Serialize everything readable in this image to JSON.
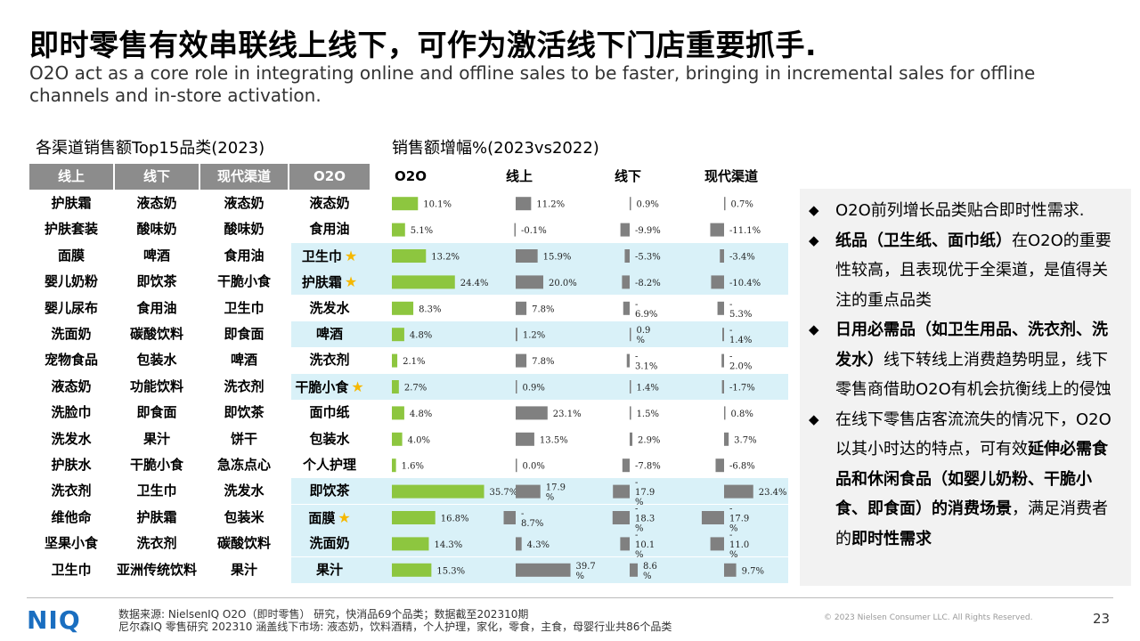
{
  "header": {
    "title": "即时零售有效串联线上线下，可作为激活线下门店重要抓手.",
    "subtitle": "O2O act as a core role in integrating online and offline sales to be faster, bringing in incremental sales for offline channels and in-store activation."
  },
  "ranking_table": {
    "section_title": "各渠道销售额Top15品类(2023)",
    "columns": [
      "线上",
      "线下",
      "现代渠道",
      "O2O"
    ],
    "rows": [
      [
        "护肤霜",
        "液态奶",
        "液态奶",
        "液态奶"
      ],
      [
        "护肤套装",
        "酸味奶",
        "酸味奶",
        "食用油"
      ],
      [
        "面膜",
        "啤酒",
        "食用油",
        "卫生巾"
      ],
      [
        "婴儿奶粉",
        "即饮茶",
        "干脆小食",
        "护肤霜"
      ],
      [
        "婴儿尿布",
        "食用油",
        "卫生巾",
        "洗发水"
      ],
      [
        "洗面奶",
        "碳酸饮料",
        "即食面",
        "啤酒"
      ],
      [
        "宠物食品",
        "包装水",
        "啤酒",
        "洗衣剂"
      ],
      [
        "液态奶",
        "功能饮料",
        "洗衣剂",
        "干脆小食"
      ],
      [
        "洗脸巾",
        "即食面",
        "即饮茶",
        "面巾纸"
      ],
      [
        "洗发水",
        "果汁",
        "饼干",
        "包装水"
      ],
      [
        "护肤水",
        "干脆小食",
        "急冻点心",
        "个人护理"
      ],
      [
        "洗衣剂",
        "卫生巾",
        "洗发水",
        "即饮茶"
      ],
      [
        "维他命",
        "护肤霜",
        "包装米",
        "面膜"
      ],
      [
        "坚果小食",
        "洗衣剂",
        "碳酸饮料",
        "洗面奶"
      ],
      [
        "卫生巾",
        "亚洲传统饮料",
        "果汁",
        "果汁"
      ]
    ],
    "starred_rows": [
      2,
      3,
      7,
      12
    ],
    "highlighted_rows": [
      2,
      3,
      5,
      7,
      11,
      12,
      13,
      14
    ],
    "header_color": "#8c8c8c",
    "highlight_color": "#d9f1f8",
    "star_color": "#f5b800"
  },
  "chart_data": {
    "type": "bar",
    "title": "销售额增幅%(2023vs2022)",
    "orientation": "horizontal",
    "categories": [
      "液态奶",
      "食用油",
      "卫生巾",
      "护肤霜",
      "洗发水",
      "啤酒",
      "洗衣剂",
      "干脆小食",
      "面巾纸",
      "包装水",
      "个人护理",
      "即饮茶",
      "面膜",
      "洗面奶",
      "果汁"
    ],
    "series": [
      {
        "name": "O2O",
        "color": "#8dc63f",
        "values": [
          10.1,
          5.1,
          13.2,
          24.4,
          8.3,
          4.8,
          2.1,
          2.7,
          4.8,
          4.0,
          1.6,
          35.7,
          16.8,
          14.3,
          15.3
        ]
      },
      {
        "name": "线上",
        "color": "#808080",
        "values": [
          11.2,
          -0.1,
          15.9,
          20.0,
          7.8,
          1.2,
          7.8,
          0.9,
          23.1,
          13.5,
          0.0,
          17.9,
          -8.7,
          4.3,
          39.7
        ]
      },
      {
        "name": "线下",
        "color": "#808080",
        "values": [
          0.9,
          -9.9,
          -5.3,
          -8.2,
          -6.9,
          0.9,
          -3.1,
          1.4,
          1.5,
          2.9,
          -7.8,
          -17.9,
          -18.3,
          -10.1,
          8.6
        ]
      },
      {
        "name": "现代渠道",
        "color": "#808080",
        "values": [
          0.7,
          -11.1,
          -3.4,
          -10.4,
          -5.3,
          -1.4,
          -2.0,
          -1.7,
          0.8,
          3.7,
          -6.8,
          23.4,
          -17.9,
          -11.0,
          9.7
        ]
      }
    ],
    "labels": [
      [
        "10.1%",
        "11.2%",
        "0.9%",
        "0.7%"
      ],
      [
        "5.1%",
        "-0.1%",
        "-9.9%",
        "-11.1%"
      ],
      [
        "13.2%",
        "15.9%",
        "-5.3%",
        "-3.4%"
      ],
      [
        "24.4%",
        "20.0%",
        "-8.2%",
        "-10.4%"
      ],
      [
        "8.3%",
        "7.8%",
        "-|6.9%",
        "-|5.3%"
      ],
      [
        "4.8%",
        "1.2%",
        "0.9|%",
        "-|1.4%"
      ],
      [
        "2.1%",
        "7.8%",
        "-|3.1%",
        "-|2.0%"
      ],
      [
        "2.7%",
        "0.9%",
        "1.4%",
        "-1.7%"
      ],
      [
        "4.8%",
        "23.1%",
        "1.5%",
        "0.8%"
      ],
      [
        "4.0%",
        "13.5%",
        "2.9%",
        "3.7%"
      ],
      [
        "1.6%",
        "0.0%",
        "-7.8%",
        "-6.8%"
      ],
      [
        "35.7%",
        "17.9|%",
        "-|17.9|%",
        "23.4%"
      ],
      [
        "16.8%",
        "-|8.7%",
        "-|18.3|%",
        "-|17.9|%"
      ],
      [
        "14.3%",
        "4.3%",
        "-|10.1|%",
        "-|11.0|%"
      ],
      [
        "15.3%",
        "39.7|%",
        "8.6|%",
        "9.7%"
      ]
    ]
  },
  "insights": {
    "bullet_glyph": "◆",
    "items": [
      [
        {
          "t": "O2O前列增长品类贴合即时性需求.",
          "b": false
        }
      ],
      [
        {
          "t": "纸品（卫生纸、面巾纸）",
          "b": true
        },
        {
          "t": "在O2O的重要性较高，且表现优于全渠道，是值得关注的重点品类",
          "b": false
        }
      ],
      [
        {
          "t": "日用必需品（如卫生用品、洗衣剂、洗发水）",
          "b": true
        },
        {
          "t": "线下转线上消费趋势明显，线下零售商借助O2O有机会抗衡线上的侵蚀",
          "b": false
        }
      ],
      [
        {
          "t": "在线下零售店客流流失的情况下，O2O以其小时达的特点，可有效",
          "b": false
        },
        {
          "t": "延伸必需食品和休闲食品（如婴儿奶粉、干脆小食、即食面）的消费场景",
          "b": true
        },
        {
          "t": "，满足消费者的",
          "b": false
        },
        {
          "t": "即时性需求",
          "b": true
        }
      ]
    ]
  },
  "footer": {
    "logo": "NIQ",
    "source_line1": "数据来源: NielsenIQ O2O（即时零售） 研究，快消品69个品类；数据截至202310期",
    "source_line2": "尼尔森IQ 零售研究 202310 涵盖线下市场: 液态奶，饮料酒精，个人护理，家化，零食，主食，母婴行业共86个品类",
    "copyright": "© 2023 Nielsen Consumer LLC. All Rights Reserved.",
    "page_number": "23"
  }
}
